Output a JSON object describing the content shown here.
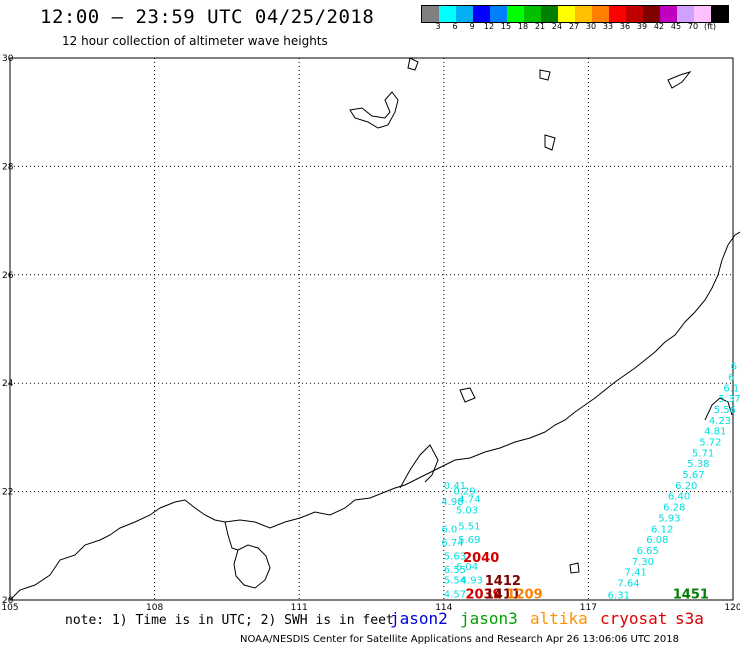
{
  "header": {
    "title": "12:00 – 23:59 UTC 04/25/2018",
    "subtitle": "12 hour collection of altimeter wave heights"
  },
  "legend": {
    "colors": [
      "#808080",
      "#00ffff",
      "#00b0f0",
      "#0000ff",
      "#0080ff",
      "#00ff00",
      "#00c000",
      "#008000",
      "#ffff00",
      "#ffc000",
      "#ff8000",
      "#ff0000",
      "#c00000",
      "#800000",
      "#c000c0",
      "#d0a0ff",
      "#ffc0ff",
      "#000000"
    ],
    "labels": [
      "3",
      "6",
      "9",
      "12",
      "15",
      "18",
      "21",
      "24",
      "27",
      "30",
      "33",
      "36",
      "39",
      "42",
      "45",
      "70",
      "(ft)"
    ]
  },
  "map": {
    "lon_ticks": [
      "105",
      "108",
      "111",
      "114",
      "117",
      "120"
    ],
    "lat_ticks": [
      "30",
      "28",
      "26",
      "24",
      "22",
      "20"
    ],
    "coast_color": "#000000"
  },
  "observations": [
    {
      "text": "0.41",
      "lon": 114.0,
      "lat": 22.05,
      "color": "#00e0e0"
    },
    {
      "text": "0.29",
      "lon": 114.2,
      "lat": 21.95,
      "color": "#00e0e0"
    },
    {
      "text": "4.74",
      "lon": 114.3,
      "lat": 21.8,
      "color": "#00e0e0"
    },
    {
      "text": "4.98",
      "lon": 113.95,
      "lat": 21.75,
      "color": "#00e0e0"
    },
    {
      "text": "5.03",
      "lon": 114.25,
      "lat": 21.6,
      "color": "#00e0e0"
    },
    {
      "text": "5.51",
      "lon": 114.3,
      "lat": 21.3,
      "color": "#00e0e0"
    },
    {
      "text": "6.0",
      "lon": 113.95,
      "lat": 21.25,
      "color": "#00e0e0"
    },
    {
      "text": "5.69",
      "lon": 114.3,
      "lat": 21.05,
      "color": "#00e0e0"
    },
    {
      "text": "6.74",
      "lon": 113.95,
      "lat": 21.0,
      "color": "#00e0e0"
    },
    {
      "text": "5.63",
      "lon": 114.0,
      "lat": 20.75,
      "color": "#00e0e0"
    },
    {
      "text": "6.55",
      "lon": 114.0,
      "lat": 20.5,
      "color": "#00e0e0"
    },
    {
      "text": "6.04",
      "lon": 114.25,
      "lat": 20.55,
      "color": "#00e0e0"
    },
    {
      "text": "5.54",
      "lon": 114.0,
      "lat": 20.3,
      "color": "#00e0e0"
    },
    {
      "text": "4.93",
      "lon": 114.35,
      "lat": 20.3,
      "color": "#00e0e0"
    },
    {
      "text": "4.57",
      "lon": 114.0,
      "lat": 20.05,
      "color": "#00e0e0"
    },
    {
      "text": "6.31",
      "lon": 117.4,
      "lat": 20.03,
      "color": "#00e0e0"
    },
    {
      "text": "7.64",
      "lon": 117.6,
      "lat": 20.25,
      "color": "#00e0e0"
    },
    {
      "text": "7.41",
      "lon": 117.75,
      "lat": 20.45,
      "color": "#00e0e0"
    },
    {
      "text": "7.30",
      "lon": 117.9,
      "lat": 20.65,
      "color": "#00e0e0"
    },
    {
      "text": "6.65",
      "lon": 118.0,
      "lat": 20.85,
      "color": "#00e0e0"
    },
    {
      "text": "6.08",
      "lon": 118.2,
      "lat": 21.05,
      "color": "#00e0e0"
    },
    {
      "text": "6.12",
      "lon": 118.3,
      "lat": 21.25,
      "color": "#00e0e0"
    },
    {
      "text": "5.93",
      "lon": 118.45,
      "lat": 21.45,
      "color": "#00e0e0"
    },
    {
      "text": "6.28",
      "lon": 118.55,
      "lat": 21.65,
      "color": "#00e0e0"
    },
    {
      "text": "6.40",
      "lon": 118.65,
      "lat": 21.85,
      "color": "#00e0e0"
    },
    {
      "text": "6.20",
      "lon": 118.8,
      "lat": 22.05,
      "color": "#00e0e0"
    },
    {
      "text": "5.67",
      "lon": 118.95,
      "lat": 22.25,
      "color": "#00e0e0"
    },
    {
      "text": "5.38",
      "lon": 119.05,
      "lat": 22.45,
      "color": "#00e0e0"
    },
    {
      "text": "5.71",
      "lon": 119.15,
      "lat": 22.65,
      "color": "#00e0e0"
    },
    {
      "text": "5.72",
      "lon": 119.3,
      "lat": 22.85,
      "color": "#00e0e0"
    },
    {
      "text": "4.81",
      "lon": 119.4,
      "lat": 23.05,
      "color": "#00e0e0"
    },
    {
      "text": "4.23",
      "lon": 119.5,
      "lat": 23.25,
      "color": "#00e0e0"
    },
    {
      "text": "5.56",
      "lon": 119.6,
      "lat": 23.45,
      "color": "#00e0e0"
    },
    {
      "text": "5.37",
      "lon": 119.7,
      "lat": 23.65,
      "color": "#00e0e0"
    },
    {
      "text": "6.1",
      "lon": 119.8,
      "lat": 23.85,
      "color": "#00e0e0"
    },
    {
      "text": "6",
      "lon": 119.9,
      "lat": 24.05,
      "color": "#00e0e0"
    },
    {
      "text": "6",
      "lon": 119.95,
      "lat": 24.25,
      "color": "#00e0e0"
    }
  ],
  "passes": [
    {
      "text": "2040",
      "lon": 114.4,
      "lat": 20.7,
      "color": "#d00000"
    },
    {
      "text": "1412",
      "lon": 114.85,
      "lat": 20.28,
      "color": "#800000"
    },
    {
      "text": "2039",
      "lon": 114.45,
      "lat": 20.03,
      "color": "#d00000"
    },
    {
      "text": "1411",
      "lon": 114.85,
      "lat": 20.03,
      "color": "#800000"
    },
    {
      "text": "1209",
      "lon": 115.3,
      "lat": 20.03,
      "color": "#ff8000"
    },
    {
      "text": "1451",
      "lon": 118.75,
      "lat": 20.03,
      "color": "#008000"
    }
  ],
  "footer": {
    "note": "note: 1) Time is in UTC; 2) SWH is in feet",
    "satellites": [
      {
        "label": "jason2",
        "color": "#0000e0"
      },
      {
        "label": "jason3",
        "color": "#00a000"
      },
      {
        "label": "altika",
        "color": "#ff9000"
      },
      {
        "label": "cryosat",
        "color": "#e00000"
      },
      {
        "label": "s3a",
        "color": "#d00000"
      }
    ],
    "credit": "NOAA/NESDIS Center for Satellite Applications and Research   Apr 26 13:06:06 UTC 2018"
  }
}
